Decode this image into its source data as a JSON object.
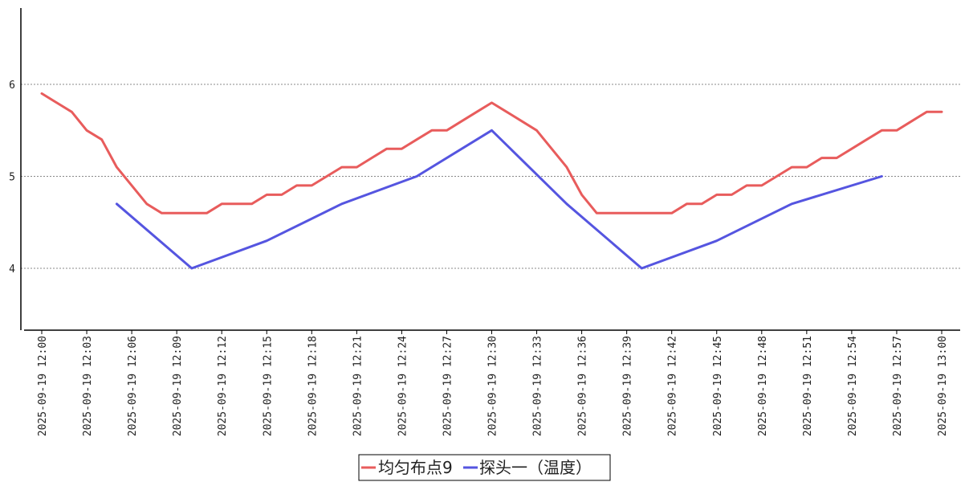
{
  "chart_data": {
    "type": "line",
    "x_tick_labels": [
      "2025-09-19 12:00",
      "2025-09-19 12:03",
      "2025-09-19 12:06",
      "2025-09-19 12:09",
      "2025-09-19 12:12",
      "2025-09-19 12:15",
      "2025-09-19 12:18",
      "2025-09-19 12:21",
      "2025-09-19 12:24",
      "2025-09-19 12:27",
      "2025-09-19 12:30",
      "2025-09-19 12:33",
      "2025-09-19 12:36",
      "2025-09-19 12:39",
      "2025-09-19 12:42",
      "2025-09-19 12:45",
      "2025-09-19 12:48",
      "2025-09-19 12:51",
      "2025-09-19 12:54",
      "2025-09-19 12:57",
      "2025-09-19 13:00"
    ],
    "x_range": [
      "2025-09-19 12:00",
      "2025-09-19 13:00"
    ],
    "y_ticks": [
      4,
      5,
      6
    ],
    "ylim": [
      3.35,
      6.85
    ],
    "grid": "horizontal dotted",
    "legend_position": "bottom-center",
    "series": [
      {
        "name": "均匀布点9",
        "color": "#e85c5c",
        "points": [
          [
            "12:00",
            5.9
          ],
          [
            "12:01",
            5.8
          ],
          [
            "12:02",
            5.7
          ],
          [
            "12:03",
            5.5
          ],
          [
            "12:04",
            5.4
          ],
          [
            "12:05",
            5.1
          ],
          [
            "12:06",
            4.9
          ],
          [
            "12:07",
            4.7
          ],
          [
            "12:08",
            4.6
          ],
          [
            "12:09",
            4.6
          ],
          [
            "12:10",
            4.6
          ],
          [
            "12:11",
            4.6
          ],
          [
            "12:12",
            4.7
          ],
          [
            "12:13",
            4.7
          ],
          [
            "12:14",
            4.7
          ],
          [
            "12:15",
            4.8
          ],
          [
            "12:16",
            4.8
          ],
          [
            "12:17",
            4.9
          ],
          [
            "12:18",
            4.9
          ],
          [
            "12:19",
            5.0
          ],
          [
            "12:20",
            5.1
          ],
          [
            "12:21",
            5.1
          ],
          [
            "12:22",
            5.2
          ],
          [
            "12:23",
            5.3
          ],
          [
            "12:24",
            5.3
          ],
          [
            "12:25",
            5.4
          ],
          [
            "12:26",
            5.5
          ],
          [
            "12:27",
            5.5
          ],
          [
            "12:28",
            5.6
          ],
          [
            "12:29",
            5.7
          ],
          [
            "12:30",
            5.8
          ],
          [
            "12:31",
            5.7
          ],
          [
            "12:32",
            5.6
          ],
          [
            "12:33",
            5.5
          ],
          [
            "12:34",
            5.3
          ],
          [
            "12:35",
            5.1
          ],
          [
            "12:36",
            4.8
          ],
          [
            "12:37",
            4.6
          ],
          [
            "12:38",
            4.6
          ],
          [
            "12:39",
            4.6
          ],
          [
            "12:40",
            4.6
          ],
          [
            "12:41",
            4.6
          ],
          [
            "12:42",
            4.6
          ],
          [
            "12:43",
            4.7
          ],
          [
            "12:44",
            4.7
          ],
          [
            "12:45",
            4.8
          ],
          [
            "12:46",
            4.8
          ],
          [
            "12:47",
            4.9
          ],
          [
            "12:48",
            4.9
          ],
          [
            "12:49",
            5.0
          ],
          [
            "12:50",
            5.1
          ],
          [
            "12:51",
            5.1
          ],
          [
            "12:52",
            5.2
          ],
          [
            "12:53",
            5.2
          ],
          [
            "12:54",
            5.3
          ],
          [
            "12:55",
            5.4
          ],
          [
            "12:56",
            5.5
          ],
          [
            "12:57",
            5.5
          ],
          [
            "12:58",
            5.6
          ],
          [
            "12:59",
            5.7
          ],
          [
            "13:00",
            5.7
          ]
        ]
      },
      {
        "name": "探头一（温度）",
        "color": "#5555e0",
        "points": [
          [
            "12:05",
            4.7
          ],
          [
            "12:10",
            4.0
          ],
          [
            "12:15",
            4.3
          ],
          [
            "12:20",
            4.7
          ],
          [
            "12:25",
            5.0
          ],
          [
            "12:30",
            5.5
          ],
          [
            "12:35",
            4.7
          ],
          [
            "12:40",
            4.0
          ],
          [
            "12:45",
            4.3
          ],
          [
            "12:50",
            4.7
          ],
          [
            "12:56",
            5.0
          ]
        ]
      }
    ]
  }
}
